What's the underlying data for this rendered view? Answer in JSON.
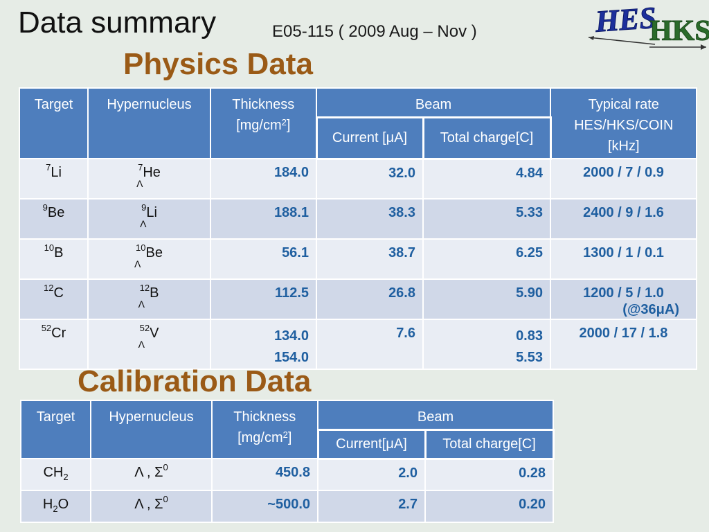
{
  "header": {
    "title": "Data summary",
    "subtitle": "E05-115  ( 2009 Aug – Nov )",
    "logo_text_1": "HES",
    "logo_text_2": "HKS"
  },
  "physics": {
    "section_title": "Physics Data",
    "headers": {
      "target": "Target",
      "hypernucleus": "Hypernucleus",
      "thickness": "Thickness",
      "thickness_unit_pre": "[mg/cm",
      "thickness_unit_sup": "2",
      "thickness_unit_post": "]",
      "beam": "Beam",
      "current": "Current [μA]",
      "total_charge": "Total charge[C]",
      "rate_1": "Typical rate",
      "rate_2": "HES/HKS/COIN",
      "rate_3": "[kHz]"
    },
    "rows": [
      {
        "target_mass": "7",
        "target_el": "Li",
        "hyp_mass": "7",
        "hyp_el": "He",
        "lambda": "Λ",
        "thickness": "184.0",
        "current": "32.0",
        "charge": "4.84",
        "rate": "2000 / 7 / 0.9"
      },
      {
        "target_mass": "9",
        "target_el": "Be",
        "hyp_mass": "9",
        "hyp_el": "Li",
        "lambda": "Λ",
        "thickness": "188.1",
        "current": "38.3",
        "charge": "5.33",
        "rate": "2400 /  9 / 1.6"
      },
      {
        "target_mass": "10",
        "target_el": "B",
        "hyp_mass": "10",
        "hyp_el": "Be",
        "lambda": "Λ",
        "thickness": "56.1",
        "current": "38.7",
        "charge": "6.25",
        "rate": "1300 /  1 / 0.1"
      },
      {
        "target_mass": "12",
        "target_el": "C",
        "hyp_mass": "12",
        "hyp_el": "B",
        "lambda": "Λ",
        "thickness": "112.5",
        "current": "26.8",
        "charge": "5.90",
        "rate": "1200 /  5 / 1.0",
        "rate_note": "(@36μA)"
      },
      {
        "target_mass": "52",
        "target_el": "Cr",
        "hyp_mass": "52",
        "hyp_el": "V",
        "lambda": "Λ",
        "thickness": "134.0",
        "thickness_2": "154.0",
        "current": "7.6",
        "charge": "0.83",
        "charge_2": "5.53",
        "rate": "2000 / 17 / 1.8"
      }
    ]
  },
  "calibration": {
    "section_title": "Calibration Data",
    "headers": {
      "target": "Target",
      "hypernucleus": "Hypernucleus",
      "thickness": "Thickness",
      "thickness_unit_pre": "[mg/cm",
      "thickness_unit_sup": "2",
      "thickness_unit_post": "]",
      "beam": "Beam",
      "current": "Current[μA]",
      "total_charge": "Total charge[C]"
    },
    "rows": [
      {
        "target_pre": "CH",
        "target_sub": "2",
        "target_post": "",
        "hyp_main": "Λ , Σ",
        "hyp_sup": "0",
        "thickness": "450.8",
        "current": "2.0",
        "charge": "0.28"
      },
      {
        "target_pre": "H",
        "target_sub": "2",
        "target_post": "O",
        "hyp_main": "Λ , Σ",
        "hyp_sup": "0",
        "thickness": "~500.0",
        "current": "2.7",
        "charge": "0.20"
      }
    ]
  }
}
